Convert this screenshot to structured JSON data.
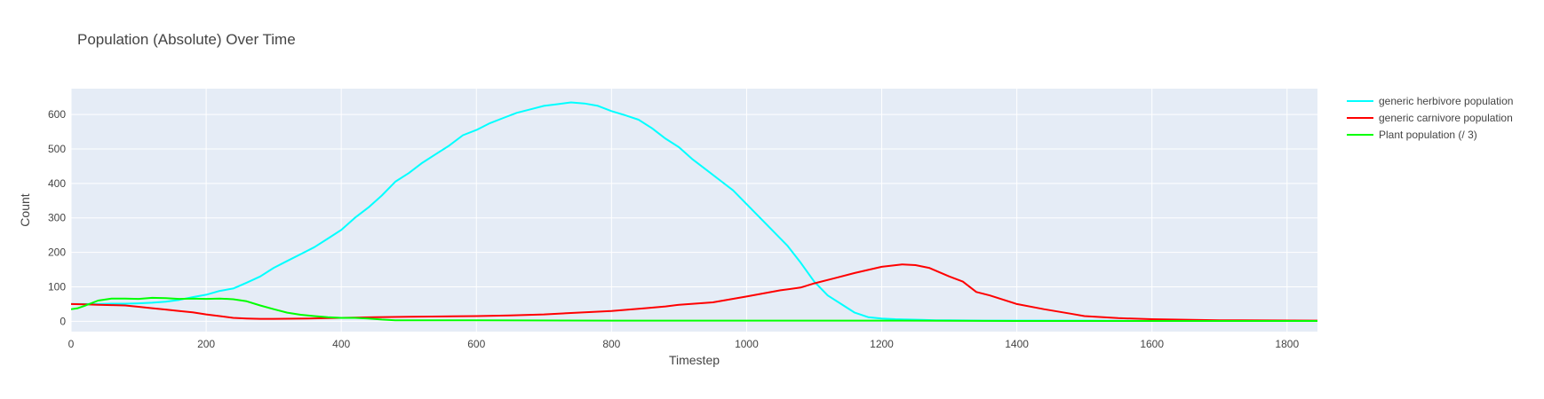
{
  "chart_data": {
    "type": "line",
    "title": "Population (Absolute) Over Time",
    "xlabel": "Timestep",
    "ylabel": "Count",
    "xlim": [
      0,
      1845
    ],
    "ylim": [
      -30,
      675
    ],
    "xticks": [
      0,
      200,
      400,
      600,
      800,
      1000,
      1200,
      1400,
      1600,
      1800
    ],
    "yticks": [
      0,
      100,
      200,
      300,
      400,
      500,
      600
    ],
    "grid": true,
    "legend_position": "right",
    "plot_bgcolor": "#e5ecf6",
    "series": [
      {
        "name": "generic herbivore population",
        "color": "#00ffff",
        "x": [
          0,
          20,
          40,
          60,
          80,
          100,
          120,
          140,
          160,
          180,
          200,
          220,
          240,
          260,
          280,
          300,
          320,
          340,
          360,
          380,
          400,
          420,
          440,
          460,
          480,
          500,
          520,
          540,
          560,
          580,
          600,
          620,
          640,
          660,
          680,
          700,
          720,
          740,
          760,
          780,
          800,
          820,
          840,
          860,
          880,
          900,
          920,
          940,
          960,
          980,
          1000,
          1020,
          1040,
          1060,
          1080,
          1100,
          1120,
          1140,
          1160,
          1180,
          1200,
          1220,
          1240,
          1260,
          1280,
          1300,
          1350,
          1400,
          1500,
          1600,
          1700,
          1845
        ],
        "values": [
          50,
          50,
          50,
          51,
          51,
          52,
          54,
          57,
          62,
          70,
          77,
          88,
          95,
          112,
          130,
          155,
          175,
          195,
          215,
          240,
          265,
          300,
          330,
          365,
          405,
          430,
          460,
          485,
          510,
          540,
          555,
          575,
          590,
          605,
          615,
          625,
          630,
          635,
          632,
          625,
          610,
          598,
          585,
          560,
          530,
          505,
          470,
          440,
          410,
          380,
          340,
          300,
          260,
          220,
          170,
          115,
          75,
          50,
          25,
          12,
          8,
          6,
          5,
          4,
          3,
          3,
          2,
          2,
          2,
          1,
          1,
          1
        ]
      },
      {
        "name": "generic carnivore population",
        "color": "#ff0000",
        "x": [
          0,
          20,
          40,
          60,
          80,
          100,
          120,
          140,
          160,
          180,
          200,
          220,
          240,
          260,
          280,
          300,
          350,
          400,
          450,
          500,
          550,
          600,
          650,
          700,
          750,
          800,
          850,
          880,
          900,
          950,
          1000,
          1050,
          1080,
          1100,
          1130,
          1160,
          1200,
          1230,
          1250,
          1270,
          1300,
          1320,
          1340,
          1360,
          1400,
          1440,
          1480,
          1500,
          1550,
          1600,
          1700,
          1845
        ],
        "values": [
          50,
          49,
          48,
          47,
          46,
          42,
          38,
          34,
          30,
          26,
          20,
          15,
          10,
          8,
          7,
          7,
          8,
          10,
          12,
          13,
          14,
          15,
          17,
          20,
          25,
          30,
          38,
          43,
          48,
          55,
          72,
          90,
          98,
          110,
          125,
          140,
          158,
          165,
          163,
          155,
          130,
          115,
          85,
          75,
          50,
          35,
          22,
          15,
          9,
          6,
          3,
          2
        ]
      },
      {
        "name": "Plant population (/ 3)",
        "color": "#00ff00",
        "x": [
          0,
          10,
          20,
          40,
          60,
          80,
          100,
          120,
          140,
          160,
          180,
          200,
          220,
          240,
          260,
          280,
          300,
          320,
          340,
          360,
          380,
          400,
          420,
          440,
          460,
          480,
          600,
          800,
          1000,
          1200,
          1400,
          1600,
          1845
        ],
        "values": [
          35,
          38,
          45,
          60,
          66,
          66,
          65,
          68,
          67,
          65,
          66,
          65,
          66,
          64,
          58,
          46,
          35,
          25,
          19,
          15,
          12,
          10,
          10,
          8,
          5,
          3,
          3,
          2,
          2,
          2,
          1,
          1,
          1
        ]
      }
    ]
  }
}
